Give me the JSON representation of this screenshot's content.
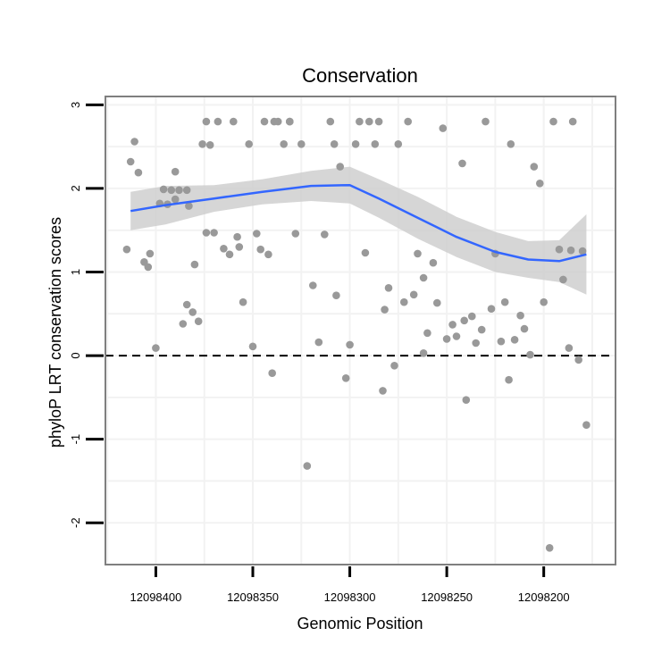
{
  "chart_data": {
    "type": "scatter",
    "title": "Conservation",
    "xlabel": "Genomic Position",
    "ylabel": "phyloP LRT conservation scores",
    "x_reversed": true,
    "xlim": [
      12098426,
      12098163
    ],
    "ylim": [
      -2.5,
      3.1
    ],
    "x_ticks": [
      12098400,
      12098350,
      12098300,
      12098250,
      12098200
    ],
    "y_ticks": [
      -2,
      -1,
      0,
      1,
      2,
      3
    ],
    "grid": true,
    "reference_line": {
      "y": 0,
      "style": "dashed"
    },
    "colors": {
      "points": "#999999",
      "smooth_line": "#3366ff",
      "ribbon": "#cccccc",
      "panel_border": "#7f7f7f",
      "grid": "#f2f2f2"
    },
    "smooth": {
      "method": "loess",
      "x": [
        12098413,
        12098395,
        12098370,
        12098345,
        12098320,
        12098300,
        12098285,
        12098265,
        12098245,
        12098225,
        12098208,
        12098192,
        12098178
      ],
      "y": [
        1.73,
        1.8,
        1.88,
        1.96,
        2.03,
        2.04,
        1.88,
        1.65,
        1.42,
        1.24,
        1.15,
        1.13,
        1.21
      ],
      "upper": [
        1.96,
        2.03,
        2.04,
        2.11,
        2.21,
        2.26,
        2.11,
        1.9,
        1.66,
        1.48,
        1.37,
        1.38,
        1.69
      ],
      "lower": [
        1.5,
        1.57,
        1.72,
        1.81,
        1.85,
        1.82,
        1.65,
        1.4,
        1.18,
        1.0,
        0.93,
        0.88,
        0.73
      ]
    },
    "points": {
      "x": [
        12098415,
        12098413,
        12098411,
        12098409,
        12098406,
        12098403,
        12098404,
        12098400,
        12098398,
        12098396,
        12098394,
        12098392,
        12098390,
        12098388,
        12098386,
        12098384,
        12098383,
        12098381,
        12098380,
        12098378,
        12098376,
        12098374,
        12098372,
        12098370,
        12098368,
        12098365,
        12098362,
        12098360,
        12098358,
        12098355,
        12098352,
        12098350,
        12098348,
        12098346,
        12098344,
        12098342,
        12098340,
        12098337,
        12098334,
        12098331,
        12098328,
        12098325,
        12098322,
        12098319,
        12098316,
        12098313,
        12098310,
        12098307,
        12098305,
        12098302,
        12098300,
        12098297,
        12098295,
        12098292,
        12098290,
        12098287,
        12098285,
        12098282,
        12098280,
        12098277,
        12098275,
        12098272,
        12098270,
        12098267,
        12098265,
        12098262,
        12098260,
        12098257,
        12098255,
        12098252,
        12098250,
        12098247,
        12098245,
        12098242,
        12098240,
        12098237,
        12098235,
        12098232,
        12098230,
        12098227,
        12098225,
        12098222,
        12098220,
        12098217,
        12098215,
        12098212,
        12098210,
        12098207,
        12098205,
        12098202,
        12098200,
        12098197,
        12098195,
        12098192,
        12098190,
        12098187,
        12098185,
        12098182,
        12098180,
        12098178,
        12098390,
        12098384,
        12098374,
        12098357,
        12098339,
        12098331,
        12098308,
        12098283,
        12098262,
        12098241,
        12098218,
        12098186
      ],
      "y": [
        1.27,
        2.32,
        2.56,
        2.19,
        1.12,
        1.22,
        1.06,
        0.09,
        1.82,
        1.99,
        1.81,
        1.98,
        1.87,
        1.98,
        0.38,
        0.61,
        1.79,
        0.52,
        1.09,
        0.41,
        2.53,
        2.8,
        2.52,
        1.47,
        2.8,
        1.28,
        1.21,
        2.8,
        1.42,
        0.64,
        2.53,
        0.11,
        1.46,
        1.27,
        2.8,
        1.21,
        -0.21,
        2.8,
        2.53,
        2.8,
        1.46,
        2.53,
        -1.32,
        0.84,
        0.16,
        1.45,
        2.8,
        0.72,
        2.26,
        -0.27,
        0.13,
        2.53,
        2.8,
        1.23,
        2.8,
        2.53,
        2.8,
        0.55,
        0.81,
        -0.12,
        2.53,
        0.64,
        2.8,
        0.73,
        1.22,
        0.03,
        0.27,
        1.11,
        0.63,
        2.72,
        0.2,
        0.37,
        0.23,
        2.3,
        -0.53,
        0.47,
        0.15,
        0.31,
        2.8,
        0.56,
        1.22,
        0.17,
        0.64,
        2.53,
        0.19,
        0.48,
        0.32,
        0.01,
        2.26,
        2.06,
        0.64,
        -2.3,
        2.8,
        1.27,
        0.91,
        0.09,
        2.8,
        -0.05,
        1.25,
        -0.83,
        2.2,
        1.98,
        1.47,
        1.3,
        2.8,
        2.8,
        2.53,
        -0.42,
        0.93,
        0.42,
        -0.29,
        1.26
      ]
    }
  }
}
